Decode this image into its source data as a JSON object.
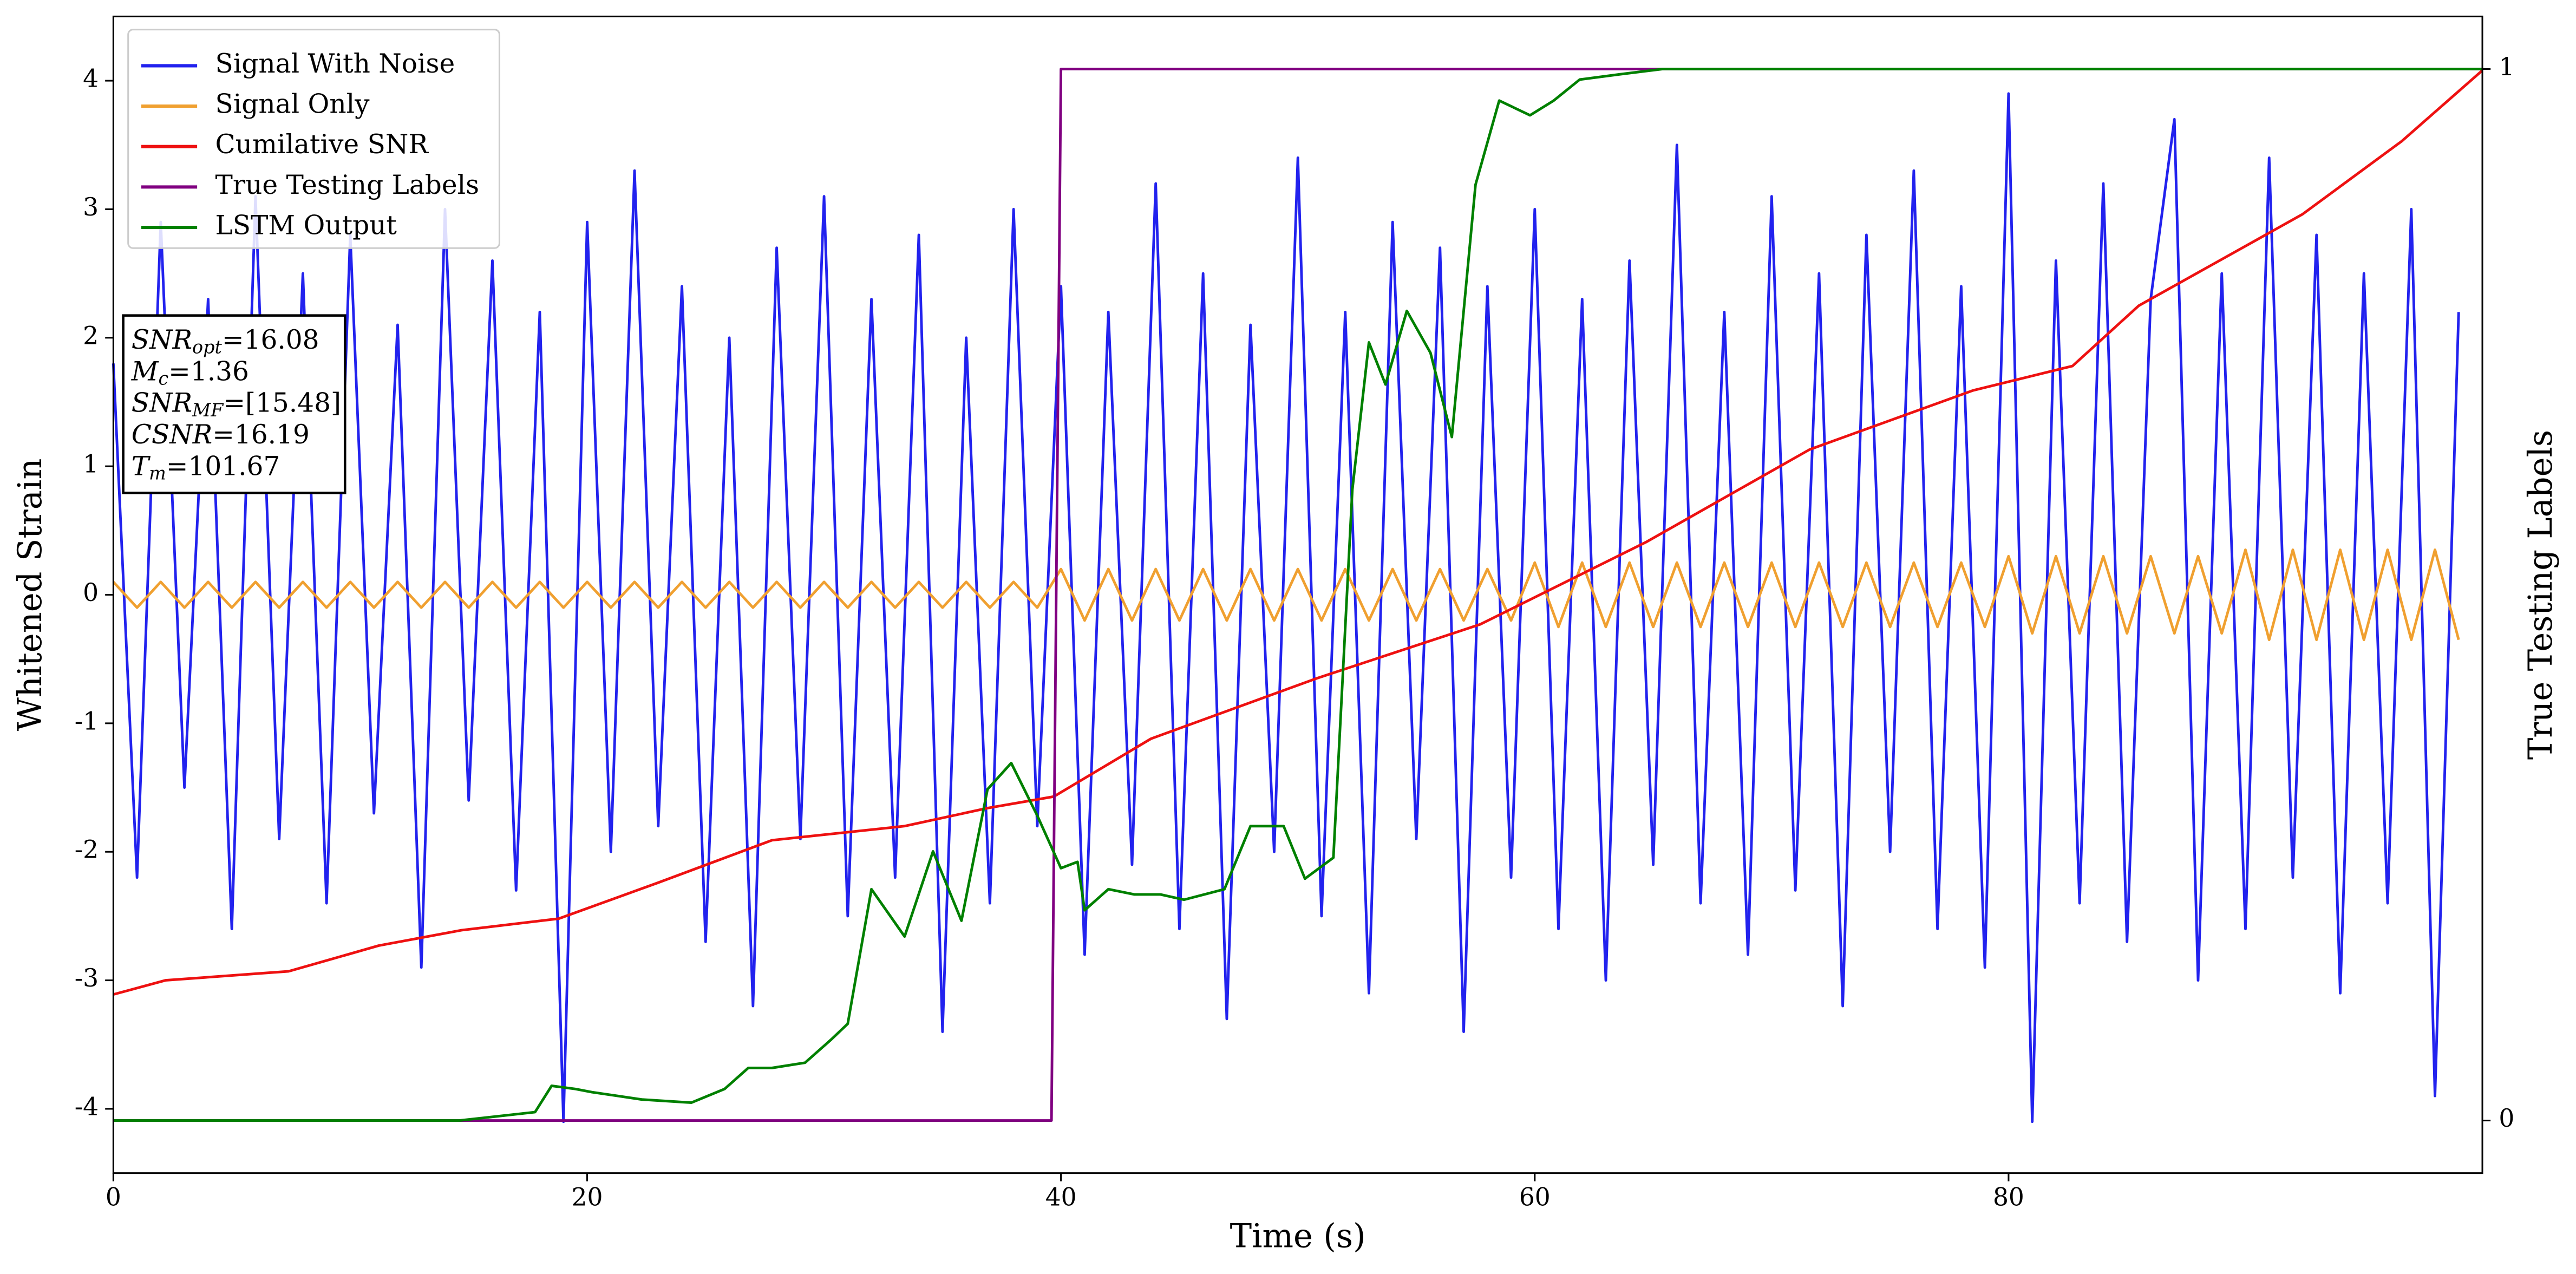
{
  "chart_data": {
    "type": "line",
    "xlabel": "Time (s)",
    "ylabel": "Whitened Strain",
    "y2label": "True Testing Labels",
    "xlim": [
      0,
      100
    ],
    "ylim": [
      -4.5,
      4.5
    ],
    "y2lim": [
      -0.05,
      1.05
    ],
    "xticks": [
      0,
      20,
      40,
      60,
      80
    ],
    "yticks": [
      -4,
      -3,
      -2,
      -1,
      0,
      1,
      2,
      3,
      4
    ],
    "y2ticks": [
      0,
      1
    ],
    "grid": false,
    "legend": "upper left",
    "annotation": [
      {
        "main": "SNR",
        "sub": "opt",
        "value": "=16.08"
      },
      {
        "main": "M",
        "sub": "c",
        "value": "=1.36"
      },
      {
        "main": "SNR",
        "sub": "MF",
        "value": "=[15.48]"
      },
      {
        "main": "CSNR",
        "value": "=16.19"
      },
      {
        "main": "T",
        "sub": "m",
        "value": "=101.67"
      }
    ],
    "series": [
      {
        "name": "Signal With Noise",
        "color": "#2222ee",
        "x": [
          0,
          1,
          2,
          3,
          4,
          5,
          6,
          7,
          8,
          9,
          10,
          11,
          12,
          13,
          14,
          15,
          16,
          17,
          18,
          19,
          20,
          21,
          22,
          23,
          24,
          25,
          26,
          27,
          28,
          29,
          30,
          31,
          32,
          33,
          34,
          35,
          36,
          37,
          38,
          39,
          40,
          41,
          42,
          43,
          44,
          45,
          46,
          47,
          48,
          49,
          50,
          51,
          52,
          53,
          54,
          55,
          56,
          57,
          58,
          59,
          60,
          61,
          62,
          63,
          64,
          65,
          66,
          67,
          68,
          69,
          70,
          71,
          72,
          73,
          74,
          75,
          76,
          77,
          78,
          79,
          80,
          81,
          82,
          83,
          84,
          85,
          86,
          87,
          88,
          89,
          90,
          91,
          92,
          93,
          94,
          95,
          96,
          97,
          98,
          99
        ],
        "values": [
          1.8,
          -2.2,
          2.9,
          -1.5,
          2.3,
          -2.6,
          3.1,
          -1.9,
          2.5,
          -2.4,
          2.8,
          -1.7,
          2.1,
          -2.9,
          3.0,
          -1.6,
          2.6,
          -2.3,
          2.2,
          -4.1,
          2.9,
          -2.0,
          3.3,
          -1.8,
          2.4,
          -2.7,
          2.0,
          -3.2,
          2.7,
          -1.9,
          3.1,
          -2.5,
          2.3,
          -2.2,
          2.8,
          -3.4,
          2.0,
          -2.4,
          3.0,
          -1.8,
          2.4,
          -2.8,
          2.2,
          -2.1,
          3.2,
          -2.6,
          2.5,
          -3.3,
          2.1,
          -2.0,
          3.4,
          -2.5,
          2.2,
          -3.1,
          2.9,
          -1.9,
          2.7,
          -3.4,
          2.4,
          -2.2,
          3.0,
          -2.6,
          2.3,
          -3.0,
          2.6,
          -2.1,
          3.5,
          -2.4,
          2.2,
          -2.8,
          3.1,
          -2.3,
          2.5,
          -3.2,
          2.8,
          -2.0,
          3.3,
          -2.6,
          2.4,
          -2.9,
          3.9,
          -4.1,
          2.6,
          -2.4,
          3.2,
          -2.7,
          2.3,
          3.7,
          -3.0,
          2.5,
          -2.6,
          3.4,
          -2.2,
          2.8,
          -3.1,
          2.5,
          -2.4,
          3.0,
          -3.9,
          2.2
        ]
      },
      {
        "name": "Signal Only",
        "color": "#f0a030",
        "x": [
          0,
          1,
          2,
          3,
          4,
          5,
          6,
          7,
          8,
          9,
          10,
          11,
          12,
          13,
          14,
          15,
          16,
          17,
          18,
          19,
          20,
          21,
          22,
          23,
          24,
          25,
          26,
          27,
          28,
          29,
          30,
          31,
          32,
          33,
          34,
          35,
          36,
          37,
          38,
          39,
          40,
          41,
          42,
          43,
          44,
          45,
          46,
          47,
          48,
          49,
          50,
          51,
          52,
          53,
          54,
          55,
          56,
          57,
          58,
          59,
          60,
          61,
          62,
          63,
          64,
          65,
          66,
          67,
          68,
          69,
          70,
          71,
          72,
          73,
          74,
          75,
          76,
          77,
          78,
          79,
          80,
          81,
          82,
          83,
          84,
          85,
          86,
          87,
          88,
          89,
          90,
          91,
          92,
          93,
          94,
          95,
          96,
          97,
          98,
          99
        ],
        "values": [
          0.1,
          -0.1,
          0.1,
          -0.1,
          0.1,
          -0.1,
          0.1,
          -0.1,
          0.1,
          -0.1,
          0.1,
          -0.1,
          0.1,
          -0.1,
          0.1,
          -0.1,
          0.1,
          -0.1,
          0.1,
          -0.1,
          0.1,
          -0.1,
          0.1,
          -0.1,
          0.1,
          -0.1,
          0.1,
          -0.1,
          0.1,
          -0.1,
          0.1,
          -0.1,
          0.1,
          -0.1,
          0.1,
          -0.1,
          0.1,
          -0.1,
          0.1,
          -0.1,
          0.2,
          -0.2,
          0.2,
          -0.2,
          0.2,
          -0.2,
          0.2,
          -0.2,
          0.2,
          -0.2,
          0.2,
          -0.2,
          0.2,
          -0.2,
          0.2,
          -0.2,
          0.2,
          -0.2,
          0.2,
          -0.2,
          0.25,
          -0.25,
          0.25,
          -0.25,
          0.25,
          -0.25,
          0.25,
          -0.25,
          0.25,
          -0.25,
          0.25,
          -0.25,
          0.25,
          -0.25,
          0.25,
          -0.25,
          0.25,
          -0.25,
          0.25,
          -0.25,
          0.3,
          -0.3,
          0.3,
          -0.3,
          0.3,
          -0.3,
          0.3,
          -0.3,
          0.3,
          -0.3,
          0.35,
          -0.35,
          0.35,
          -0.35,
          0.35,
          -0.35,
          0.35,
          -0.35,
          0.35,
          -0.35
        ]
      },
      {
        "name": "Cumilative SNR",
        "color": "#ee1111",
        "x": [
          0,
          2.2,
          7.4,
          11.2,
          14.7,
          18.8,
          23,
          27.8,
          33.4,
          36.9,
          39.7,
          43.8,
          50.8,
          57.7,
          64.7,
          71.6,
          78.5,
          82.7,
          85.5,
          92.4,
          96.6,
          100
        ],
        "values": [
          -3.11,
          -3.0,
          -2.93,
          -2.73,
          -2.61,
          -2.52,
          -2.24,
          -1.91,
          -1.8,
          -1.66,
          -1.57,
          -1.12,
          -0.65,
          -0.23,
          0.41,
          1.13,
          1.59,
          1.78,
          2.25,
          2.96,
          3.53,
          4.08
        ]
      },
      {
        "name": "True Testing Labels",
        "color": "#800080",
        "axis": "y2",
        "x": [
          0,
          39.6,
          40,
          100
        ],
        "values": [
          0,
          0,
          1,
          1
        ]
      },
      {
        "name": "LSTM Output",
        "color": "#008000",
        "axis": "y2",
        "x": [
          0,
          14.6,
          17.8,
          18.5,
          19.5,
          20.2,
          22.3,
          24.4,
          25.8,
          26.8,
          27.8,
          29.2,
          30.3,
          31,
          32,
          33.4,
          34.6,
          35.8,
          36.9,
          37.9,
          39,
          40,
          40.7,
          41,
          42,
          43.1,
          44.2,
          45.2,
          46.9,
          48,
          49.4,
          50.3,
          51.5,
          52.3,
          53,
          53.7,
          54.6,
          55.6,
          56.5,
          57.5,
          58.5,
          59.8,
          60.8,
          61.9,
          63.6,
          65.4,
          100
        ],
        "values": [
          0,
          0,
          0.008,
          0.033,
          0.03,
          0.027,
          0.02,
          0.017,
          0.03,
          0.05,
          0.05,
          0.055,
          0.077,
          0.092,
          0.22,
          0.175,
          0.256,
          0.19,
          0.315,
          0.34,
          0.29,
          0.24,
          0.246,
          0.2,
          0.22,
          0.215,
          0.215,
          0.21,
          0.22,
          0.28,
          0.28,
          0.23,
          0.25,
          0.6,
          0.74,
          0.7,
          0.77,
          0.73,
          0.65,
          0.89,
          0.97,
          0.956,
          0.97,
          0.99,
          0.995,
          1,
          1
        ]
      }
    ]
  }
}
